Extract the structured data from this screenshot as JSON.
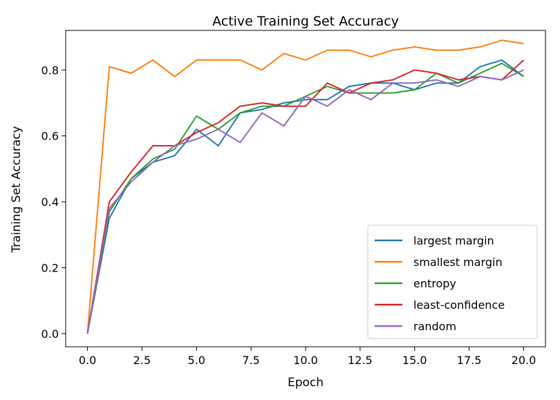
{
  "chart_data": {
    "type": "line",
    "title": "Active Training Set Accuracy",
    "xlabel": "Epoch",
    "ylabel": "Training Set Accuracy",
    "xlim": [
      -1.0,
      21.0
    ],
    "ylim": [
      -0.04,
      0.92
    ],
    "xticks": [
      0.0,
      2.5,
      5.0,
      7.5,
      10.0,
      12.5,
      15.0,
      17.5,
      20.0
    ],
    "xtick_labels": [
      "0.0",
      "2.5",
      "5.0",
      "7.5",
      "10.0",
      "12.5",
      "15.0",
      "17.5",
      "20.0"
    ],
    "yticks": [
      0.0,
      0.2,
      0.4,
      0.6,
      0.8
    ],
    "ytick_labels": [
      "0.0",
      "0.2",
      "0.4",
      "0.6",
      "0.8"
    ],
    "grid": false,
    "legend_position": "bottom-right",
    "x": [
      0,
      1,
      2,
      3,
      4,
      5,
      6,
      7,
      8,
      9,
      10,
      11,
      12,
      13,
      14,
      15,
      16,
      17,
      18,
      19,
      20
    ],
    "series": [
      {
        "name": "largest margin",
        "color": "#1f77b4",
        "values": [
          0.0,
          0.35,
          0.47,
          0.52,
          0.54,
          0.62,
          0.57,
          0.67,
          0.68,
          0.7,
          0.71,
          0.71,
          0.75,
          0.76,
          0.76,
          0.74,
          0.76,
          0.76,
          0.81,
          0.83,
          0.78
        ]
      },
      {
        "name": "smallest margin",
        "color": "#ff7f0e",
        "values": [
          0.0,
          0.81,
          0.79,
          0.83,
          0.78,
          0.83,
          0.83,
          0.83,
          0.8,
          0.85,
          0.83,
          0.86,
          0.86,
          0.84,
          0.86,
          0.87,
          0.86,
          0.86,
          0.87,
          0.89,
          0.88
        ]
      },
      {
        "name": "entropy",
        "color": "#2ca02c",
        "values": [
          0.0,
          0.37,
          0.47,
          0.53,
          0.56,
          0.66,
          0.62,
          0.67,
          0.69,
          0.69,
          0.72,
          0.75,
          0.73,
          0.73,
          0.73,
          0.74,
          0.79,
          0.76,
          0.79,
          0.82,
          0.78
        ]
      },
      {
        "name": "least-confidence",
        "color": "#d62728",
        "values": [
          0.0,
          0.4,
          0.49,
          0.57,
          0.57,
          0.61,
          0.64,
          0.69,
          0.7,
          0.69,
          0.69,
          0.76,
          0.73,
          0.76,
          0.77,
          0.8,
          0.79,
          0.77,
          0.78,
          0.77,
          0.83
        ]
      },
      {
        "name": "random",
        "color": "#9467bd",
        "values": [
          0.0,
          0.38,
          0.46,
          0.52,
          0.57,
          0.59,
          0.62,
          0.58,
          0.67,
          0.63,
          0.72,
          0.69,
          0.74,
          0.71,
          0.76,
          0.76,
          0.77,
          0.75,
          0.78,
          0.77,
          0.8
        ]
      }
    ]
  }
}
